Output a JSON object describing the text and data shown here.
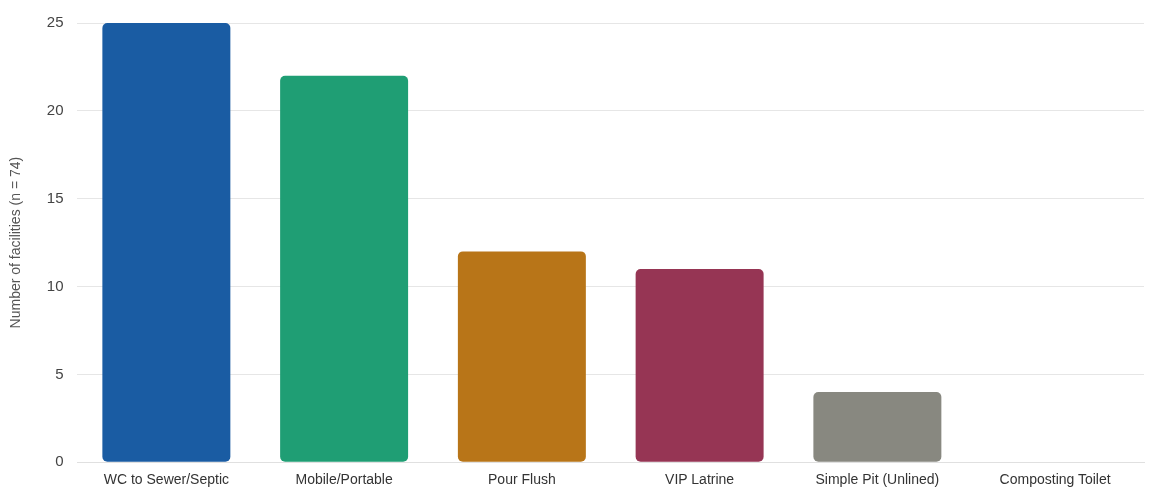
{
  "chart_data": {
    "type": "bar",
    "ylabel": "Number of facilities (n = 74)",
    "categories": [
      "WC to Sewer/Septic",
      "Mobile/Portable",
      "Pour Flush",
      "VIP Latrine",
      "Simple Pit (Unlined)",
      "Composting Toilet"
    ],
    "values": [
      25,
      22,
      12,
      11,
      4,
      0
    ],
    "colors": [
      "#1a5ca3",
      "#1f9e74",
      "#b87518",
      "#963554",
      "#888880",
      null
    ],
    "ylim": [
      0,
      25
    ],
    "yticks": [
      0,
      5,
      10,
      15,
      20,
      25
    ],
    "grid": "y",
    "legend": false
  }
}
